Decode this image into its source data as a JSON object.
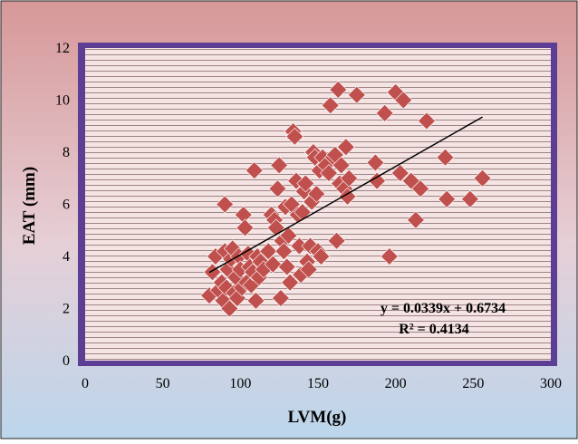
{
  "chart_data": {
    "type": "scatter",
    "xlabel": "LVM(g)",
    "ylabel": "EAT (mm)",
    "xlim": [
      0,
      300
    ],
    "ylim": [
      0,
      12
    ],
    "x_ticks": [
      "0",
      "50",
      "100",
      "150",
      "200",
      "250",
      "300"
    ],
    "y_ticks": [
      "0",
      "2",
      "4",
      "6",
      "8",
      "10",
      "12"
    ],
    "grid": "horizontal",
    "marker": "diamond",
    "series": [
      {
        "points": [
          [
            80,
            2.5
          ],
          [
            82,
            3.4
          ],
          [
            84,
            4.0
          ],
          [
            86,
            2.7
          ],
          [
            88,
            3.0
          ],
          [
            89,
            2.3
          ],
          [
            90,
            6.0
          ],
          [
            90,
            4.2
          ],
          [
            91,
            2.8
          ],
          [
            92,
            3.5
          ],
          [
            93,
            2.0
          ],
          [
            94,
            3.9
          ],
          [
            95,
            4.3
          ],
          [
            96,
            2.6
          ],
          [
            97,
            3.2
          ],
          [
            98,
            2.4
          ],
          [
            99,
            4.0
          ],
          [
            100,
            3.5
          ],
          [
            101,
            2.8
          ],
          [
            102,
            5.6
          ],
          [
            103,
            5.1
          ],
          [
            104,
            3.0
          ],
          [
            105,
            4.1
          ],
          [
            106,
            3.6
          ],
          [
            107,
            2.9
          ],
          [
            108,
            3.4
          ],
          [
            109,
            7.3
          ],
          [
            110,
            2.3
          ],
          [
            111,
            4.0
          ],
          [
            112,
            3.2
          ],
          [
            113,
            3.8
          ],
          [
            115,
            3.5
          ],
          [
            118,
            4.2
          ],
          [
            120,
            5.6
          ],
          [
            121,
            3.7
          ],
          [
            122,
            5.4
          ],
          [
            123,
            5.1
          ],
          [
            124,
            6.6
          ],
          [
            125,
            7.5
          ],
          [
            126,
            2.4
          ],
          [
            127,
            4.6
          ],
          [
            128,
            4.2
          ],
          [
            129,
            5.9
          ],
          [
            130,
            3.6
          ],
          [
            131,
            4.8
          ],
          [
            132,
            3.0
          ],
          [
            133,
            6.0
          ],
          [
            134,
            8.8
          ],
          [
            135,
            8.6
          ],
          [
            136,
            6.9
          ],
          [
            137,
            5.6
          ],
          [
            138,
            4.4
          ],
          [
            139,
            3.3
          ],
          [
            140,
            5.7
          ],
          [
            141,
            6.5
          ],
          [
            142,
            6.8
          ],
          [
            143,
            3.8
          ],
          [
            144,
            3.5
          ],
          [
            145,
            4.4
          ],
          [
            146,
            6.1
          ],
          [
            147,
            8.0
          ],
          [
            148,
            7.8
          ],
          [
            149,
            6.4
          ],
          [
            150,
            4.2
          ],
          [
            151,
            7.3
          ],
          [
            152,
            4.0
          ],
          [
            153,
            7.8
          ],
          [
            155,
            7.5
          ],
          [
            157,
            7.2
          ],
          [
            158,
            9.8
          ],
          [
            160,
            7.8
          ],
          [
            161,
            7.9
          ],
          [
            162,
            4.6
          ],
          [
            163,
            10.4
          ],
          [
            164,
            6.8
          ],
          [
            165,
            7.5
          ],
          [
            167,
            6.6
          ],
          [
            168,
            8.2
          ],
          [
            169,
            6.3
          ],
          [
            170,
            7.0
          ],
          [
            175,
            10.2
          ],
          [
            187,
            7.6
          ],
          [
            188,
            6.9
          ],
          [
            193,
            9.5
          ],
          [
            196,
            4.0
          ],
          [
            200,
            10.3
          ],
          [
            203,
            7.2
          ],
          [
            205,
            10.0
          ],
          [
            210,
            6.9
          ],
          [
            213,
            5.4
          ],
          [
            216,
            6.6
          ],
          [
            220,
            9.2
          ],
          [
            232,
            7.8
          ],
          [
            233,
            6.2
          ],
          [
            248,
            6.2
          ],
          [
            256,
            7.0
          ]
        ]
      }
    ],
    "trendline": {
      "slope": 0.0339,
      "intercept": 0.6734,
      "x_range": [
        80,
        256
      ],
      "equation_label": "y = 0.0339x + 0.6734",
      "r2_label": "R² = 0.4134"
    }
  },
  "colors": {
    "marker_fill": "#c0504d",
    "marker_stroke": "#ffffff",
    "plot_bg": "#f5e4e4",
    "grid": "#9e8383",
    "frame": "#5c3f94",
    "trendline": "#000000",
    "bg_top": "#d79898",
    "bg_bottom": "#bcd6ec"
  }
}
